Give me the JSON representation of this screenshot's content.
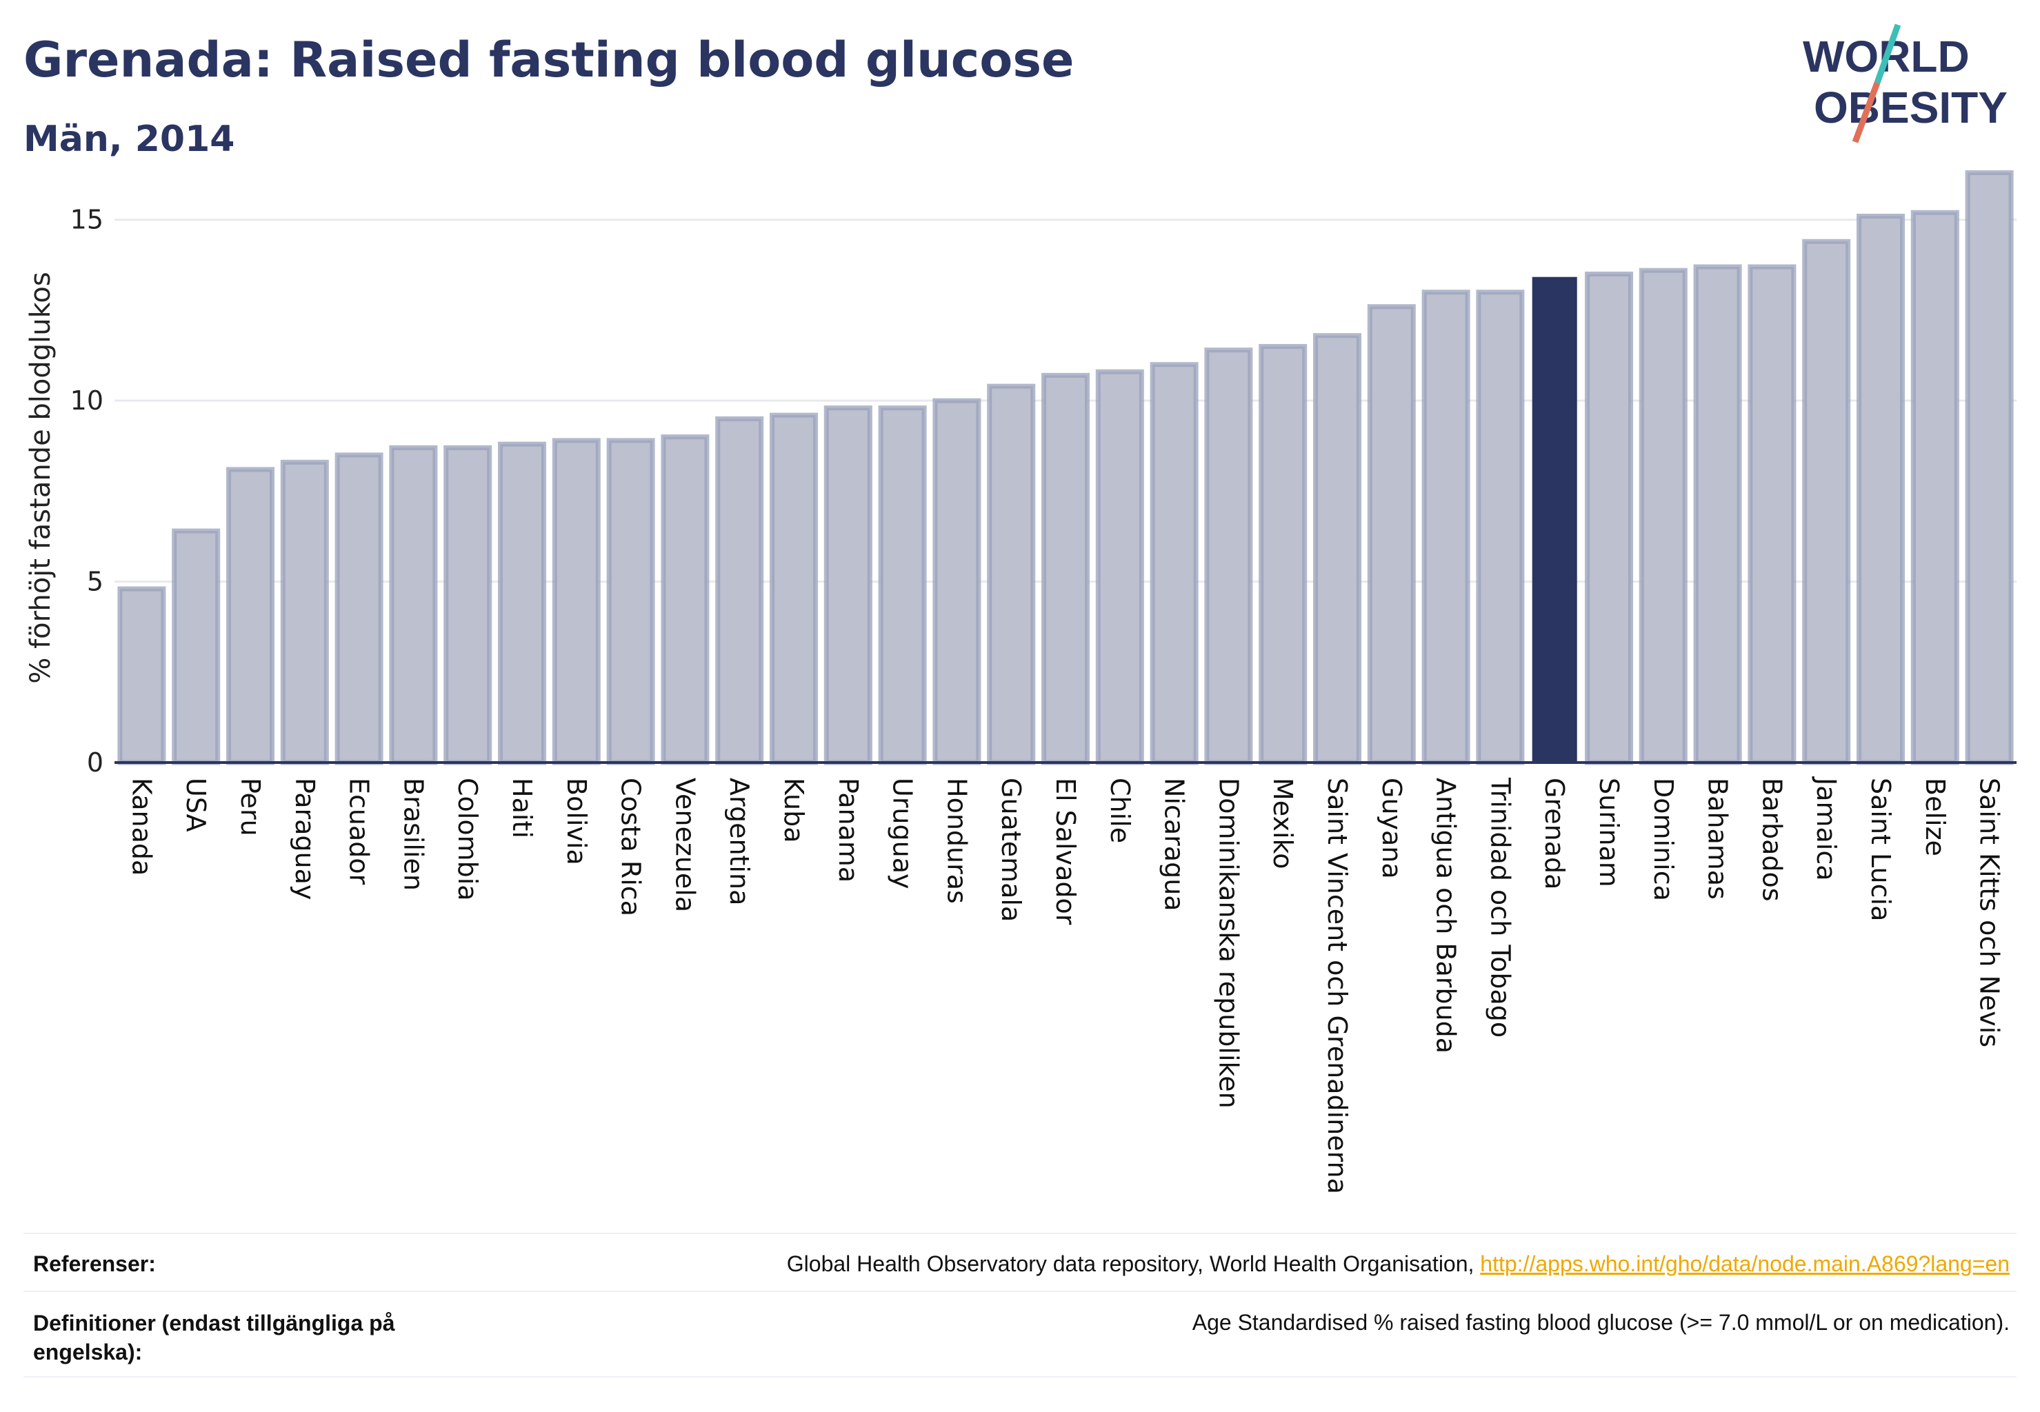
{
  "header": {
    "title": "Grenada: Raised fasting blood glucose",
    "subtitle": "Män, 2014"
  },
  "logo": {
    "line1": "WORLD",
    "line2": "OBESITY",
    "colors": {
      "text": "#2b3561",
      "slash_teal": "#3dbfb7",
      "slash_coral": "#e0705a"
    }
  },
  "colors": {
    "bar": "#bcc0cf",
    "bar_edge": "#9aa1bb",
    "highlight": "#2b3561",
    "grid": "#e8e9ef",
    "axis": "#2b3561"
  },
  "chart_data": {
    "type": "bar",
    "ylabel": "% förhöjt fastande blodglukos",
    "ylim": [
      0,
      16.5
    ],
    "yticks": [
      0,
      5,
      10,
      15
    ],
    "grid": true,
    "highlight": "Grenada",
    "categories": [
      "Kanada",
      "USA",
      "Peru",
      "Paraguay",
      "Ecuador",
      "Brasilien",
      "Colombia",
      "Haiti",
      "Bolivia",
      "Costa Rica",
      "Venezuela",
      "Argentina",
      "Kuba",
      "Panama",
      "Uruguay",
      "Honduras",
      "Guatemala",
      "El Salvador",
      "Chile",
      "Nicaragua",
      "Dominikanska republiken",
      "Mexiko",
      "Saint Vincent och Grenadinerna",
      "Guyana",
      "Antigua och Barbuda",
      "Trinidad och Tobago",
      "Grenada",
      "Surinam",
      "Dominica",
      "Bahamas",
      "Barbados",
      "Jamaica",
      "Saint Lucia",
      "Belize",
      "Saint Kitts och Nevis"
    ],
    "values": [
      4.8,
      6.4,
      8.1,
      8.3,
      8.5,
      8.7,
      8.7,
      8.8,
      8.9,
      8.9,
      9.0,
      9.5,
      9.6,
      9.8,
      9.8,
      10.0,
      10.4,
      10.7,
      10.8,
      11.0,
      11.4,
      11.5,
      11.8,
      12.6,
      13.0,
      13.0,
      13.4,
      13.5,
      13.6,
      13.7,
      13.7,
      14.4,
      15.1,
      15.2,
      16.3
    ]
  },
  "footer": {
    "references_label": "Referenser:",
    "references_text": "Global Health Observatory data repository, World Health Organisation, ",
    "references_link": "http://apps.who.int/gho/data/node.main.A869?lang=en",
    "definitions_label": "Definitioner (endast tillgängliga på engelska):",
    "definitions_text": "Age Standardised % raised fasting blood glucose (>= 7.0 mmol/L or on medication)."
  }
}
